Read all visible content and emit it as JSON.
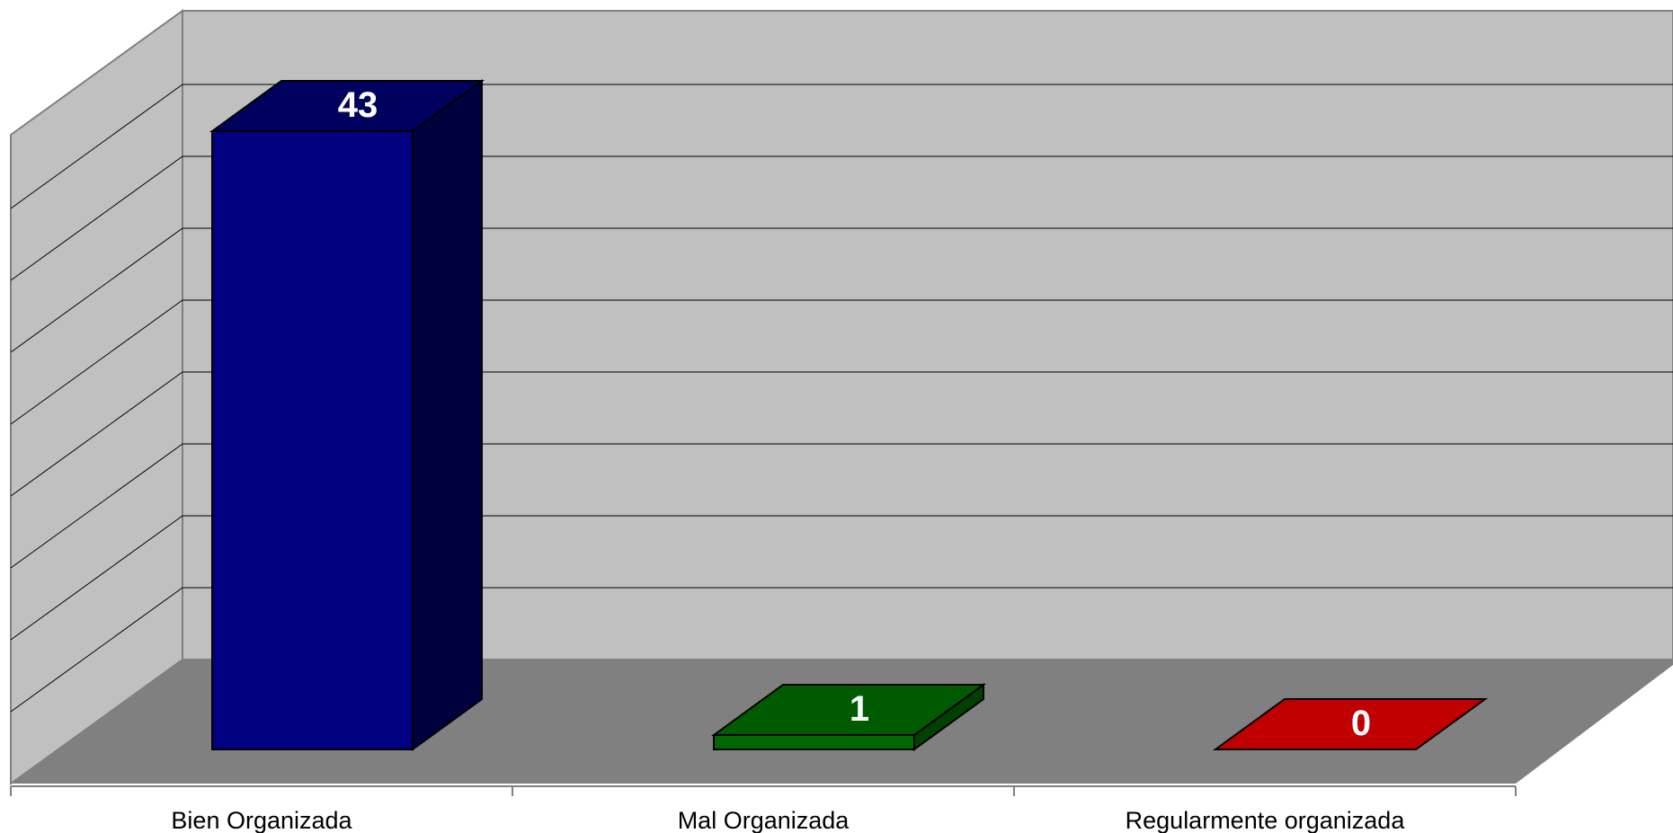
{
  "chart_data": {
    "type": "bar",
    "categories": [
      "Bien Organizada",
      "Mal Organizada",
      "Regularmente organizada"
    ],
    "values": [
      43,
      1,
      0
    ],
    "data_labels": [
      "43",
      "1",
      "0"
    ],
    "ylim": [
      0,
      45
    ],
    "grid": true,
    "legend": "none",
    "colors": {
      "series": [
        "#000080",
        "#006600",
        "#C00000"
      ],
      "series_side": [
        "#00003f",
        "#004000",
        "#7a0000"
      ],
      "series_top": [
        "#00005e",
        "#005a00",
        "#c00000"
      ],
      "back_wall": "#c0c0c0",
      "side_wall": "#c0c0c0",
      "floor": "#808080",
      "gridline": "#000000"
    }
  }
}
